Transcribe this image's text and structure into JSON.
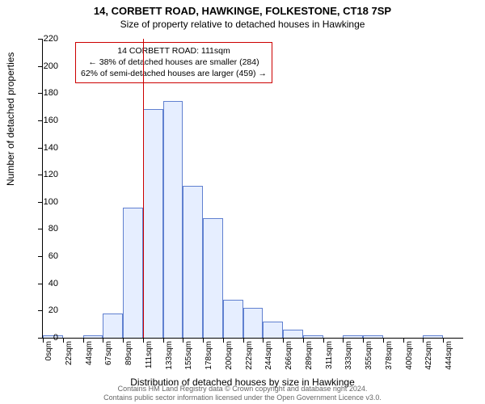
{
  "title": "14, CORBETT ROAD, HAWKINGE, FOLKESTONE, CT18 7SP",
  "subtitle": "Size of property relative to detached houses in Hawkinge",
  "y_axis_title": "Number of detached properties",
  "x_axis_title": "Distribution of detached houses by size in Hawkinge",
  "footer_line1": "Contains HM Land Registry data © Crown copyright and database right 2024.",
  "footer_line2": "Contains public sector information licensed under the Open Government Licence v3.0.",
  "chart": {
    "type": "histogram",
    "background_color": "#ffffff",
    "bar_fill": "#e6eeff",
    "bar_stroke": "#6080d0",
    "bar_stroke_width": 1,
    "vline_color": "#cc0000",
    "annotation_border": "#cc0000",
    "text_color": "#000000",
    "footer_color": "#666666",
    "ylim": [
      0,
      220
    ],
    "ytick_step": 20,
    "x_labels": [
      "0sqm",
      "22sqm",
      "44sqm",
      "67sqm",
      "89sqm",
      "111sqm",
      "133sqm",
      "155sqm",
      "178sqm",
      "200sqm",
      "222sqm",
      "244sqm",
      "266sqm",
      "289sqm",
      "311sqm",
      "333sqm",
      "355sqm",
      "378sqm",
      "400sqm",
      "422sqm",
      "444sqm"
    ],
    "values": [
      2,
      0,
      2,
      18,
      96,
      168,
      174,
      112,
      88,
      28,
      22,
      12,
      6,
      2,
      0,
      2,
      2,
      0,
      0,
      2,
      0
    ],
    "vline_at_index": 5,
    "annotation": {
      "line1": "14 CORBETT ROAD: 111sqm",
      "line2": "← 38% of detached houses are smaller (284)",
      "line3": "62% of semi-detached houses are larger (459) →"
    },
    "title_fontsize": 13,
    "subtitle_fontsize": 12,
    "axis_title_fontsize": 12,
    "tick_fontsize": 11,
    "x_tick_fontsize": 10,
    "annotation_fontsize": 10.5,
    "footer_fontsize": 9
  }
}
